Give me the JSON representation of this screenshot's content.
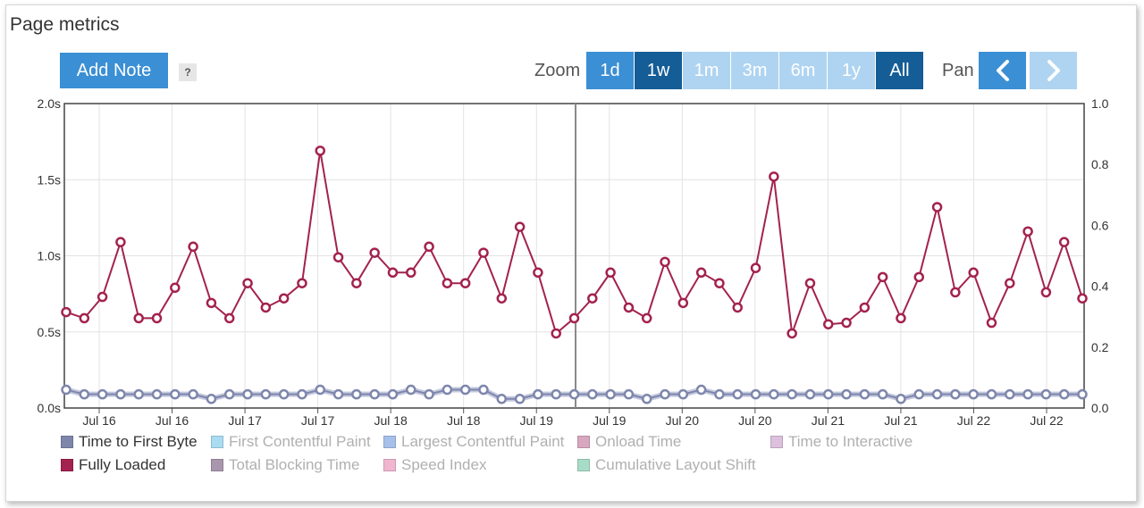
{
  "title": "Page metrics",
  "add_note_label": "Add Note",
  "help_label": "?",
  "zoom_label": "Zoom",
  "zoom_options": [
    {
      "label": "1d",
      "state": "mid"
    },
    {
      "label": "1w",
      "state": "dark"
    },
    {
      "label": "1m",
      "state": "light"
    },
    {
      "label": "3m",
      "state": "light"
    },
    {
      "label": "6m",
      "state": "light"
    },
    {
      "label": "1y",
      "state": "light"
    },
    {
      "label": "All",
      "state": "dark"
    }
  ],
  "pan_label": "Pan",
  "pan_prev_icon": "chevron-left-icon",
  "pan_next_icon": "chevron-right-icon",
  "legend": [
    {
      "label": "Time to First Byte",
      "color": "#7e86ab",
      "active": true
    },
    {
      "label": "First Contentful Paint",
      "color": "#a9dcf3",
      "active": false
    },
    {
      "label": "Largest Contentful Paint",
      "color": "#a6c0ec",
      "active": false
    },
    {
      "label": "Onload Time",
      "color": "#d8a6be",
      "active": false
    },
    {
      "label": "Time to Interactive",
      "color": "#dcc0dd",
      "active": false
    },
    {
      "label": "Fully Loaded",
      "color": "#a3224f",
      "active": true
    },
    {
      "label": "Total Blocking Time",
      "color": "#a896ad",
      "active": false
    },
    {
      "label": "Speed Index",
      "color": "#f1b6cf",
      "active": false
    },
    {
      "label": "Cumulative Layout Shift",
      "color": "#a8dcc7",
      "active": false
    }
  ],
  "chart_data": {
    "type": "line",
    "x_tick_labels": [
      "Jul 16",
      "Jul 16",
      "Jul 17",
      "Jul 17",
      "Jul 18",
      "Jul 18",
      "Jul 19",
      "Jul 19",
      "Jul 20",
      "Jul 20",
      "Jul 21",
      "Jul 21",
      "Jul 22",
      "Jul 22"
    ],
    "y_left_ticks": [
      "0.0s",
      "0.5s",
      "1.0s",
      "1.5s",
      "2.0s"
    ],
    "y_left_range": [
      0,
      2.0
    ],
    "y_right_ticks": [
      "0.0",
      "0.2",
      "0.4",
      "0.6",
      "0.8",
      "1.0"
    ],
    "y_right_range": [
      0,
      1.0
    ],
    "grid": true,
    "series": [
      {
        "name": "Fully Loaded",
        "color": "#a3224f",
        "values": [
          0.63,
          0.59,
          0.73,
          1.09,
          0.59,
          0.59,
          0.79,
          1.06,
          0.69,
          0.59,
          0.82,
          0.66,
          0.72,
          0.82,
          1.69,
          0.99,
          0.82,
          1.02,
          0.89,
          0.89,
          1.06,
          0.82,
          0.82,
          1.02,
          0.72,
          1.19,
          0.89,
          0.49,
          0.59,
          0.72,
          0.89,
          0.66,
          0.59,
          0.96,
          0.69,
          0.89,
          0.82,
          0.66,
          0.92,
          1.52,
          0.49,
          0.82,
          0.55,
          0.56,
          0.66,
          0.86,
          0.59,
          0.86,
          1.32,
          0.76,
          0.89,
          0.56,
          0.82,
          1.16,
          0.76,
          1.09,
          0.72
        ]
      },
      {
        "name": "Time to First Byte",
        "color": "#7e86ab",
        "values": [
          0.12,
          0.09,
          0.09,
          0.09,
          0.09,
          0.09,
          0.09,
          0.09,
          0.06,
          0.09,
          0.09,
          0.09,
          0.09,
          0.09,
          0.12,
          0.09,
          0.09,
          0.09,
          0.09,
          0.12,
          0.09,
          0.12,
          0.12,
          0.12,
          0.06,
          0.06,
          0.09,
          0.09,
          0.09,
          0.09,
          0.09,
          0.09,
          0.06,
          0.09,
          0.09,
          0.12,
          0.09,
          0.09,
          0.09,
          0.09,
          0.09,
          0.09,
          0.09,
          0.09,
          0.09,
          0.09,
          0.06,
          0.09,
          0.09,
          0.09,
          0.09,
          0.09,
          0.09,
          0.09,
          0.09,
          0.09,
          0.09
        ]
      }
    ]
  }
}
